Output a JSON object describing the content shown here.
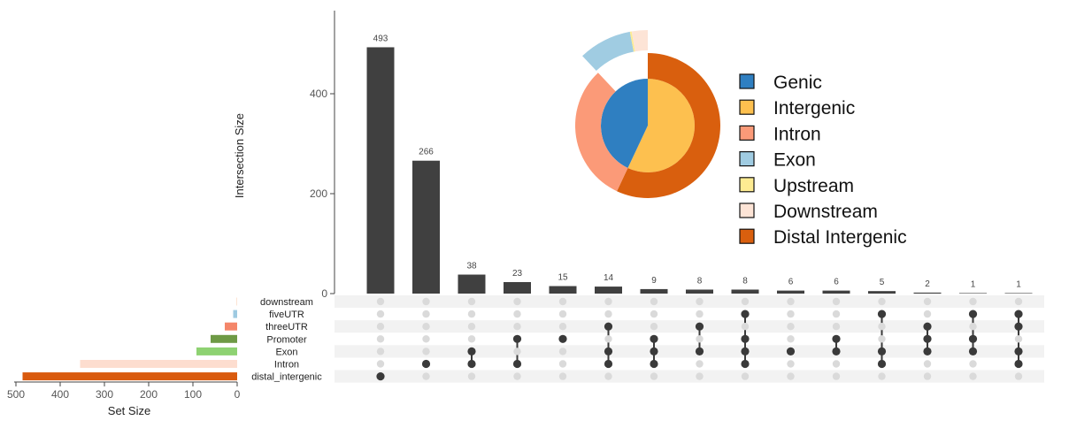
{
  "chart_data": [
    {
      "type": "bar",
      "title": "",
      "ylabel": "Intersection Size",
      "ylim": [
        0,
        550
      ],
      "yticks": [
        0,
        200,
        400
      ],
      "values": [
        493,
        266,
        38,
        23,
        15,
        14,
        9,
        8,
        8,
        6,
        6,
        5,
        2,
        1,
        1
      ],
      "value_labels": [
        "493",
        "266",
        "38",
        "23",
        "15",
        "14",
        "9",
        "8",
        "8",
        "6",
        "6",
        "5",
        "2",
        "1",
        "1"
      ],
      "bar_color": "#404040"
    },
    {
      "type": "matrix",
      "sets": [
        "downstream",
        "fiveUTR",
        "threeUTR",
        "Promoter",
        "Exon",
        "Intron",
        "distal_intergenic"
      ],
      "intersections": [
        [
          "distal_intergenic"
        ],
        [
          "Intron"
        ],
        [
          "Exon",
          "Intron"
        ],
        [
          "Promoter",
          "Intron"
        ],
        [
          "Promoter"
        ],
        [
          "threeUTR",
          "Exon",
          "Intron"
        ],
        [
          "Promoter",
          "Exon",
          "Intron"
        ],
        [
          "threeUTR",
          "Exon"
        ],
        [
          "fiveUTR",
          "Promoter",
          "Exon",
          "Intron"
        ],
        [
          "Exon"
        ],
        [
          "Promoter",
          "Exon"
        ],
        [
          "fiveUTR",
          "Exon",
          "Intron"
        ],
        [
          "threeUTR",
          "Promoter",
          "Exon"
        ],
        [
          "fiveUTR",
          "Promoter",
          "Exon"
        ],
        [
          "fiveUTR",
          "threeUTR",
          "Exon",
          "Intron"
        ]
      ],
      "dot_active_color": "#3a3a3a",
      "dot_inactive_color": "#dadada"
    },
    {
      "type": "bar",
      "orientation": "horizontal",
      "xlabel": "Set Size",
      "xlim": [
        500,
        0
      ],
      "xticks": [
        "500",
        "400",
        "300",
        "200",
        "100",
        "0"
      ],
      "categories": [
        "downstream",
        "fiveUTR",
        "threeUTR",
        "Promoter",
        "Exon",
        "Intron",
        "distal_intergenic"
      ],
      "values": [
        2,
        9,
        28,
        60,
        92,
        355,
        485
      ],
      "colors": [
        "#fde4d4",
        "#9ecae1",
        "#f4866a",
        "#6e9a45",
        "#8ed272",
        "#fdddcf",
        "#d95a0e"
      ]
    },
    {
      "type": "pie",
      "subtype": "nested-donut",
      "inner_ring": [
        {
          "label": "Genic",
          "value": 43,
          "color": "#2f7fc1"
        },
        {
          "label": "Intergenic",
          "value": 57,
          "color": "#fdc04f"
        }
      ],
      "outer_ring": [
        {
          "label": "Intron",
          "value": 31,
          "color": "#fb9a78"
        },
        {
          "label": "Exon",
          "value": 9,
          "color": "#a0cce2"
        },
        {
          "label": "Upstream",
          "value": 0.3,
          "color": "#fdeb92"
        },
        {
          "label": "Downstream",
          "value": 2.7,
          "color": "#fde4d6"
        },
        {
          "label": "Distal Intergenic",
          "value": 57,
          "color": "#d95f0e"
        }
      ],
      "exploded": [
        "Exon",
        "Upstream",
        "Downstream"
      ],
      "legend": {
        "position": "right",
        "items": [
          {
            "label": "Genic",
            "color": "#2f7fc1"
          },
          {
            "label": "Intergenic",
            "color": "#fdc04f"
          },
          {
            "label": "Intron",
            "color": "#fb9a78"
          },
          {
            "label": "Exon",
            "color": "#a0cce2"
          },
          {
            "label": "Upstream",
            "color": "#fdeb92"
          },
          {
            "label": "Downstream",
            "color": "#fde4d6"
          },
          {
            "label": "Distal Intergenic",
            "color": "#d95f0e"
          }
        ]
      }
    }
  ]
}
